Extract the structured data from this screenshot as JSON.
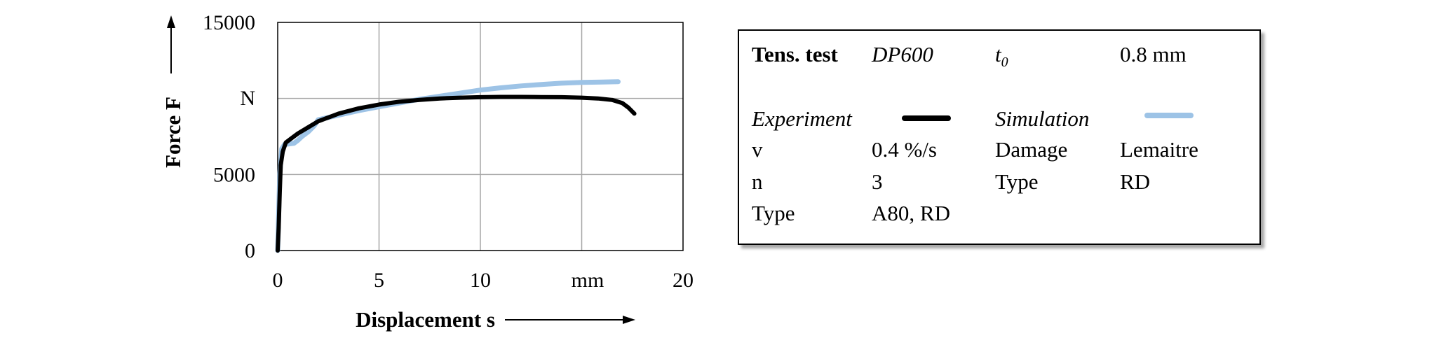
{
  "chart_data": {
    "type": "line",
    "title": "",
    "xlabel": "Displacement s",
    "ylabel": "Force F",
    "x_unit": "mm",
    "y_unit": "N",
    "xlim": [
      0,
      20
    ],
    "ylim": [
      0,
      15000
    ],
    "x_ticks": [
      0,
      5,
      10,
      20
    ],
    "x_tick_labels": [
      "0",
      "5",
      "10",
      "20"
    ],
    "y_ticks": [
      0,
      5000,
      15000
    ],
    "y_tick_labels": [
      "0",
      "5000",
      "15000"
    ],
    "grid": true,
    "legend": "right",
    "series": [
      {
        "name": "Experiment",
        "color": "#000000",
        "x": [
          0,
          0.05,
          0.1,
          0.15,
          0.25,
          0.4,
          0.7,
          1.0,
          1.5,
          2.0,
          3.0,
          4.0,
          5.0,
          6.0,
          7.0,
          8.0,
          9.0,
          10.0,
          11.0,
          12.0,
          13.0,
          14.0,
          15.0,
          15.8,
          16.5,
          17.0,
          17.3,
          17.6
        ],
        "y": [
          0,
          1500,
          3800,
          5600,
          6500,
          7100,
          7400,
          7700,
          8100,
          8500,
          9000,
          9350,
          9600,
          9780,
          9900,
          10000,
          10050,
          10080,
          10100,
          10100,
          10090,
          10080,
          10050,
          10000,
          9900,
          9700,
          9400,
          9000
        ]
      },
      {
        "name": "Simulation",
        "color": "#9dc3e6",
        "x": [
          0,
          0.05,
          0.1,
          0.2,
          0.35,
          0.5,
          0.8,
          1.0,
          1.2,
          1.5,
          1.8,
          2.0,
          2.5,
          3.0,
          4.0,
          5.0,
          6.0,
          7.0,
          8.0,
          9.0,
          10.0,
          11.0,
          12.0,
          13.0,
          14.0,
          15.0,
          16.0,
          16.8
        ],
        "y": [
          0,
          2500,
          5000,
          6700,
          7000,
          7000,
          7050,
          7250,
          7500,
          7800,
          8200,
          8600,
          8750,
          8900,
          9200,
          9450,
          9700,
          9950,
          10150,
          10350,
          10550,
          10700,
          10820,
          10920,
          11000,
          11050,
          11080,
          11100
        ]
      }
    ]
  },
  "legend_table": {
    "r1": {
      "c1": "Tens. test",
      "c2": "DP600",
      "c3_base": "t",
      "c3_sub": "0",
      "c4": "0.8 mm"
    },
    "r2": {
      "c1": "Experiment",
      "c3": "Simulation"
    },
    "r3": {
      "c1": "v",
      "c2": "0.4 %/s",
      "c3": "Damage",
      "c4": "Lemaitre"
    },
    "r4": {
      "c1": "n",
      "c2": "3",
      "c3": "Type",
      "c4": "RD"
    },
    "r5": {
      "c1": "Type",
      "c2": "A80, RD"
    }
  }
}
